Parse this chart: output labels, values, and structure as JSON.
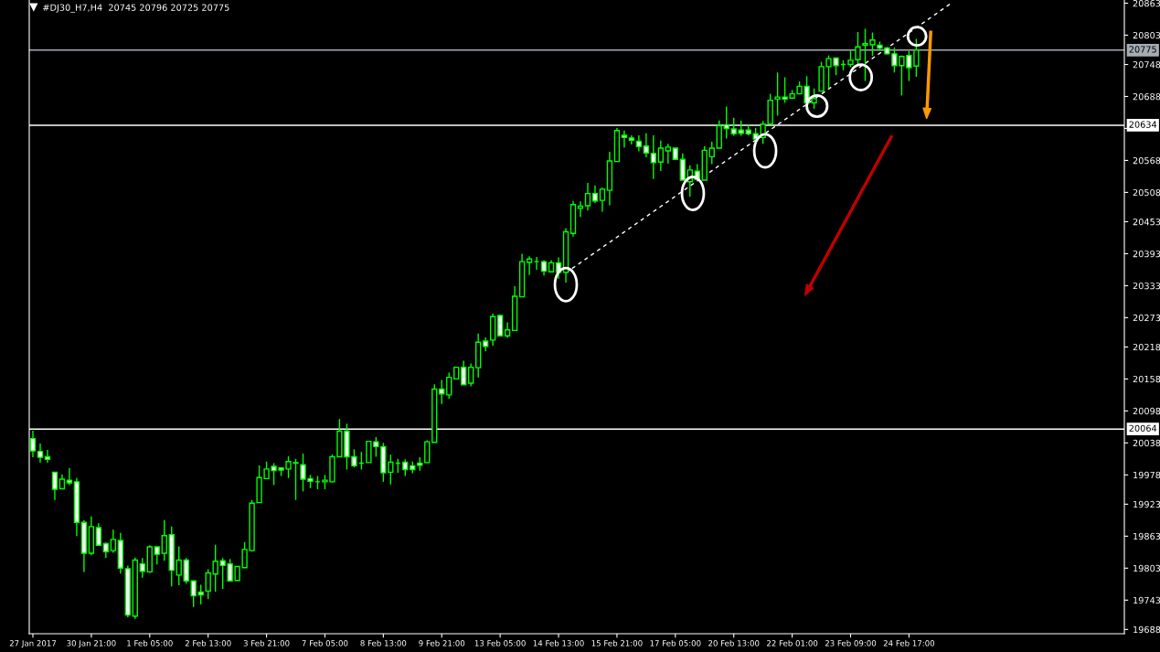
{
  "chart_data": {
    "type": "candlestick",
    "title": "#DJ30_H7,H4  20745 20796 20725 20775",
    "categories": [
      "27 Jan 2017",
      null,
      null,
      null,
      null,
      null,
      null,
      null,
      "30 Jan 21:00",
      null,
      null,
      null,
      null,
      null,
      null,
      null,
      "1 Feb 05:00",
      null,
      null,
      null,
      null,
      null,
      null,
      null,
      "2 Feb 13:00",
      null,
      null,
      null,
      null,
      null,
      null,
      null,
      "3 Feb 21:00",
      null,
      null,
      null,
      null,
      null,
      null,
      null,
      "7 Feb 05:00",
      null,
      null,
      null,
      null,
      null,
      null,
      null,
      "8 Feb 13:00",
      null,
      null,
      null,
      null,
      null,
      null,
      null,
      "9 Feb 21:00",
      null,
      null,
      null,
      null,
      null,
      null,
      null,
      "13 Feb 05:00",
      null,
      null,
      null,
      null,
      null,
      null,
      null,
      "14 Feb 13:00",
      null,
      null,
      null,
      null,
      null,
      null,
      null,
      "15 Feb 21:00",
      null,
      null,
      null,
      null,
      null,
      null,
      null,
      "17 Feb 05:00",
      null,
      null,
      null,
      null,
      null,
      null,
      null,
      "20 Feb 13:00",
      null,
      null,
      null,
      null,
      null,
      null,
      null,
      "22 Feb 01:00",
      null,
      null,
      null,
      null,
      null,
      null,
      null,
      "23 Feb 09:00",
      null,
      null,
      null,
      null,
      null,
      null,
      null,
      "24 Feb 17:00",
      null,
      null,
      null,
      null,
      null,
      null,
      null,
      null,
      null,
      null,
      null,
      null,
      null,
      null,
      null,
      null,
      null,
      null,
      null,
      null,
      null,
      null,
      null,
      null,
      null,
      null,
      null,
      null,
      null
    ],
    "series": [
      {
        "color": "#00ff00",
        "ohlc": [
          [
            20046,
            20061,
            20011,
            20023
          ],
          [
            20022,
            20037,
            20001,
            20011
          ],
          [
            20012,
            20025,
            20001,
            20007
          ],
          [
            19983,
            19983,
            19931,
            19951
          ],
          [
            19952,
            19979,
            19952,
            19970
          ],
          [
            19968,
            19991,
            19959,
            19963
          ],
          [
            19965,
            19972,
            19863,
            19889
          ],
          [
            19889,
            19893,
            19796,
            19831
          ],
          [
            19831,
            19900,
            19827,
            19881
          ],
          [
            19879,
            19887,
            19846,
            19846
          ],
          [
            19849,
            19851,
            19822,
            19834
          ],
          [
            19836,
            19875,
            19832,
            19857
          ],
          [
            19855,
            19869,
            19793,
            19803
          ],
          [
            19802,
            19808,
            19711,
            19715
          ],
          [
            19713,
            19823,
            19708,
            19818
          ],
          [
            19811,
            19822,
            19785,
            19797
          ],
          [
            19796,
            19846,
            19794,
            19843
          ],
          [
            19843,
            19843,
            19810,
            19829
          ],
          [
            19831,
            19893,
            19817,
            19864
          ],
          [
            19866,
            19881,
            19769,
            19799
          ],
          [
            19790,
            19844,
            19771,
            19818
          ],
          [
            19818,
            19822,
            19774,
            19779
          ],
          [
            19779,
            19780,
            19730,
            19751
          ],
          [
            19758,
            19772,
            19735,
            19753
          ],
          [
            19760,
            19801,
            19745,
            19794
          ],
          [
            19792,
            19847,
            19759,
            19816
          ],
          [
            19817,
            19822,
            19764,
            19808
          ],
          [
            19811,
            19820,
            19779,
            19779
          ],
          [
            19780,
            19806,
            19780,
            19806
          ],
          [
            19804,
            19852,
            19804,
            19838
          ],
          [
            19836,
            19931,
            19834,
            19925
          ],
          [
            19926,
            19996,
            19926,
            19973
          ],
          [
            19971,
            20003,
            19971,
            19989
          ],
          [
            19994,
            20000,
            19959,
            19986
          ],
          [
            19991,
            19992,
            19976,
            19987
          ],
          [
            19989,
            20013,
            19972,
            20003
          ],
          [
            20000,
            20008,
            19931,
            20001
          ],
          [
            19997,
            20018,
            19947,
            19970
          ],
          [
            19971,
            19978,
            19953,
            19966
          ],
          [
            19965,
            19976,
            19951,
            19965
          ],
          [
            19965,
            19978,
            19951,
            19968
          ],
          [
            19965,
            20016,
            19964,
            20012
          ],
          [
            20012,
            20083,
            20012,
            20060
          ],
          [
            20060,
            20074,
            19988,
            20012
          ],
          [
            20012,
            20026,
            19992,
            19995
          ],
          [
            20000,
            20021,
            19988,
            20000
          ],
          [
            20001,
            20041,
            20001,
            20041
          ],
          [
            20040,
            20049,
            20012,
            20031
          ],
          [
            20031,
            20038,
            19965,
            19982
          ],
          [
            19983,
            20016,
            19960,
            20002
          ],
          [
            20000,
            20008,
            19982,
            20000
          ],
          [
            20002,
            20007,
            19976,
            19988
          ],
          [
            19995,
            20003,
            19981,
            19988
          ],
          [
            20000,
            20011,
            19986,
            19996
          ],
          [
            20001,
            20043,
            20000,
            20040
          ],
          [
            20039,
            20148,
            20039,
            20139
          ],
          [
            20139,
            20156,
            20111,
            20130
          ],
          [
            20128,
            20170,
            20121,
            20161
          ],
          [
            20158,
            20180,
            20157,
            20180
          ],
          [
            20180,
            20192,
            20147,
            20147
          ],
          [
            20150,
            20187,
            20144,
            20180
          ],
          [
            20179,
            20243,
            20161,
            20227
          ],
          [
            20229,
            20236,
            20210,
            20219
          ],
          [
            20231,
            20281,
            20220,
            20275
          ],
          [
            20277,
            20279,
            20239,
            20239
          ],
          [
            20239,
            20264,
            20235,
            20250
          ],
          [
            20249,
            20332,
            20249,
            20313
          ],
          [
            20312,
            20393,
            20312,
            20378
          ],
          [
            20377,
            20388,
            20353,
            20383
          ],
          [
            20378,
            20387,
            20363,
            20378
          ],
          [
            20378,
            20381,
            20352,
            20360
          ],
          [
            20359,
            20381,
            20358,
            20376
          ],
          [
            20376,
            20386,
            20346,
            20358
          ],
          [
            20358,
            20441,
            20339,
            20434
          ],
          [
            20431,
            20492,
            20425,
            20485
          ],
          [
            20478,
            20491,
            20462,
            20482
          ],
          [
            20483,
            20526,
            20474,
            20506
          ],
          [
            20506,
            20521,
            20488,
            20492
          ],
          [
            20493,
            20517,
            20472,
            20514
          ],
          [
            20512,
            20584,
            20484,
            20567
          ],
          [
            20566,
            20629,
            20566,
            20624
          ],
          [
            20615,
            20624,
            20592,
            20611
          ],
          [
            20610,
            20615,
            20598,
            20606
          ],
          [
            20604,
            20615,
            20585,
            20594
          ],
          [
            20595,
            20619,
            20574,
            20582
          ],
          [
            20581,
            20615,
            20533,
            20564
          ],
          [
            20565,
            20605,
            20548,
            20591
          ],
          [
            20586,
            20599,
            20562,
            20593
          ],
          [
            20591,
            20591,
            20570,
            20570
          ],
          [
            20570,
            20581,
            20531,
            20531
          ],
          [
            20528,
            20559,
            20500,
            20550
          ],
          [
            20548,
            20561,
            20531,
            20532
          ],
          [
            20531,
            20595,
            20531,
            20587
          ],
          [
            20575,
            20603,
            20561,
            20591
          ],
          [
            20591,
            20643,
            20591,
            20633
          ],
          [
            20635,
            20669,
            20609,
            20628
          ],
          [
            20627,
            20648,
            20614,
            20618
          ],
          [
            20625,
            20643,
            20614,
            20619
          ],
          [
            20625,
            20635,
            20615,
            20618
          ],
          [
            20618,
            20629,
            20602,
            20608
          ],
          [
            20611,
            20642,
            20599,
            20636
          ],
          [
            20636,
            20693,
            20636,
            20681
          ],
          [
            20683,
            20733,
            20652,
            20687
          ],
          [
            20687,
            20724,
            20676,
            20683
          ],
          [
            20685,
            20700,
            20683,
            20693
          ],
          [
            20693,
            20716,
            20693,
            20707
          ],
          [
            20707,
            20726,
            20676,
            20676
          ],
          [
            20676,
            20703,
            20665,
            20684
          ],
          [
            20698,
            20753,
            20698,
            20744
          ],
          [
            20744,
            20765,
            20703,
            20759
          ],
          [
            20760,
            20760,
            20728,
            20746
          ],
          [
            20748,
            20756,
            20737,
            20748
          ],
          [
            20748,
            20774,
            20743,
            20756
          ],
          [
            20757,
            20809,
            20749,
            20781
          ],
          [
            20784,
            20815,
            20717,
            20787
          ],
          [
            20785,
            20808,
            20764,
            20794
          ],
          [
            20784,
            20791,
            20774,
            20779
          ],
          [
            20779,
            20781,
            20767,
            20768
          ],
          [
            20768,
            20780,
            20733,
            20746
          ],
          [
            20746,
            20765,
            20690,
            20763
          ],
          [
            20765,
            20773,
            20717,
            20742
          ],
          [
            20745,
            20796,
            20725,
            20775
          ],
          null,
          null,
          null,
          null,
          null,
          null,
          null,
          null,
          null,
          null,
          null,
          null,
          null,
          null,
          null,
          null,
          null,
          null,
          null,
          null,
          null,
          null,
          null,
          null,
          null,
          null,
          null,
          null
        ]
      },
      {
        "type": "line",
        "color": "#ffffff",
        "line_style": "dashed",
        "values": [
          null,
          null,
          null,
          null,
          null,
          null,
          null,
          null,
          null,
          null,
          null,
          null,
          null,
          null,
          null,
          null,
          null,
          null,
          null,
          null,
          null,
          null,
          null,
          null,
          null,
          null,
          null,
          null,
          null,
          null,
          null,
          null,
          null,
          null,
          null,
          null,
          null,
          null,
          null,
          null,
          null,
          null,
          null,
          null,
          null,
          null,
          null,
          null,
          null,
          null,
          null,
          null,
          null,
          null,
          null,
          null,
          null,
          null,
          null,
          null,
          null,
          null,
          null,
          null,
          null,
          null,
          null,
          null,
          null,
          null,
          null,
          null,
          null,
          20357,
          null,
          null,
          null,
          null,
          null,
          null,
          null,
          null,
          null,
          null,
          null,
          null,
          null,
          null,
          null,
          null,
          null,
          null,
          null,
          null,
          null,
          null,
          null,
          null,
          null,
          null,
          null,
          null,
          null,
          null,
          null,
          null,
          null,
          null,
          null,
          null,
          null,
          null,
          null,
          null,
          null,
          null,
          null,
          null,
          null,
          null,
          null,
          null,
          null,
          null,
          null,
          null,
          20865,
          null,
          null,
          null,
          null,
          null,
          null,
          null,
          null,
          null,
          null,
          null,
          null,
          null,
          null,
          null,
          null,
          null,
          null,
          null,
          null,
          null,
          null,
          null
        ]
      }
    ],
    "ylim": [
      19680,
      20869
    ],
    "yticks": [
      19688,
      19743,
      19803,
      19863,
      19923,
      19978,
      20038,
      20098,
      20158,
      20218,
      20273,
      20333,
      20393,
      20453,
      20508,
      20568,
      {
        "value": 20628,
        "label": null
      },
      20688,
      20748,
      20803,
      20863
    ],
    "ref_lines": [
      {
        "axis": "y",
        "value": 20775,
        "label": "20775",
        "color": "#a4acb4"
      },
      {
        "axis": "y",
        "value": 20634,
        "label": "20634",
        "color": "#ffffff"
      },
      {
        "axis": "y",
        "value": 20064,
        "label": "20064",
        "color": "#ffffff"
      }
    ],
    "grid": false,
    "legend": false
  }
}
